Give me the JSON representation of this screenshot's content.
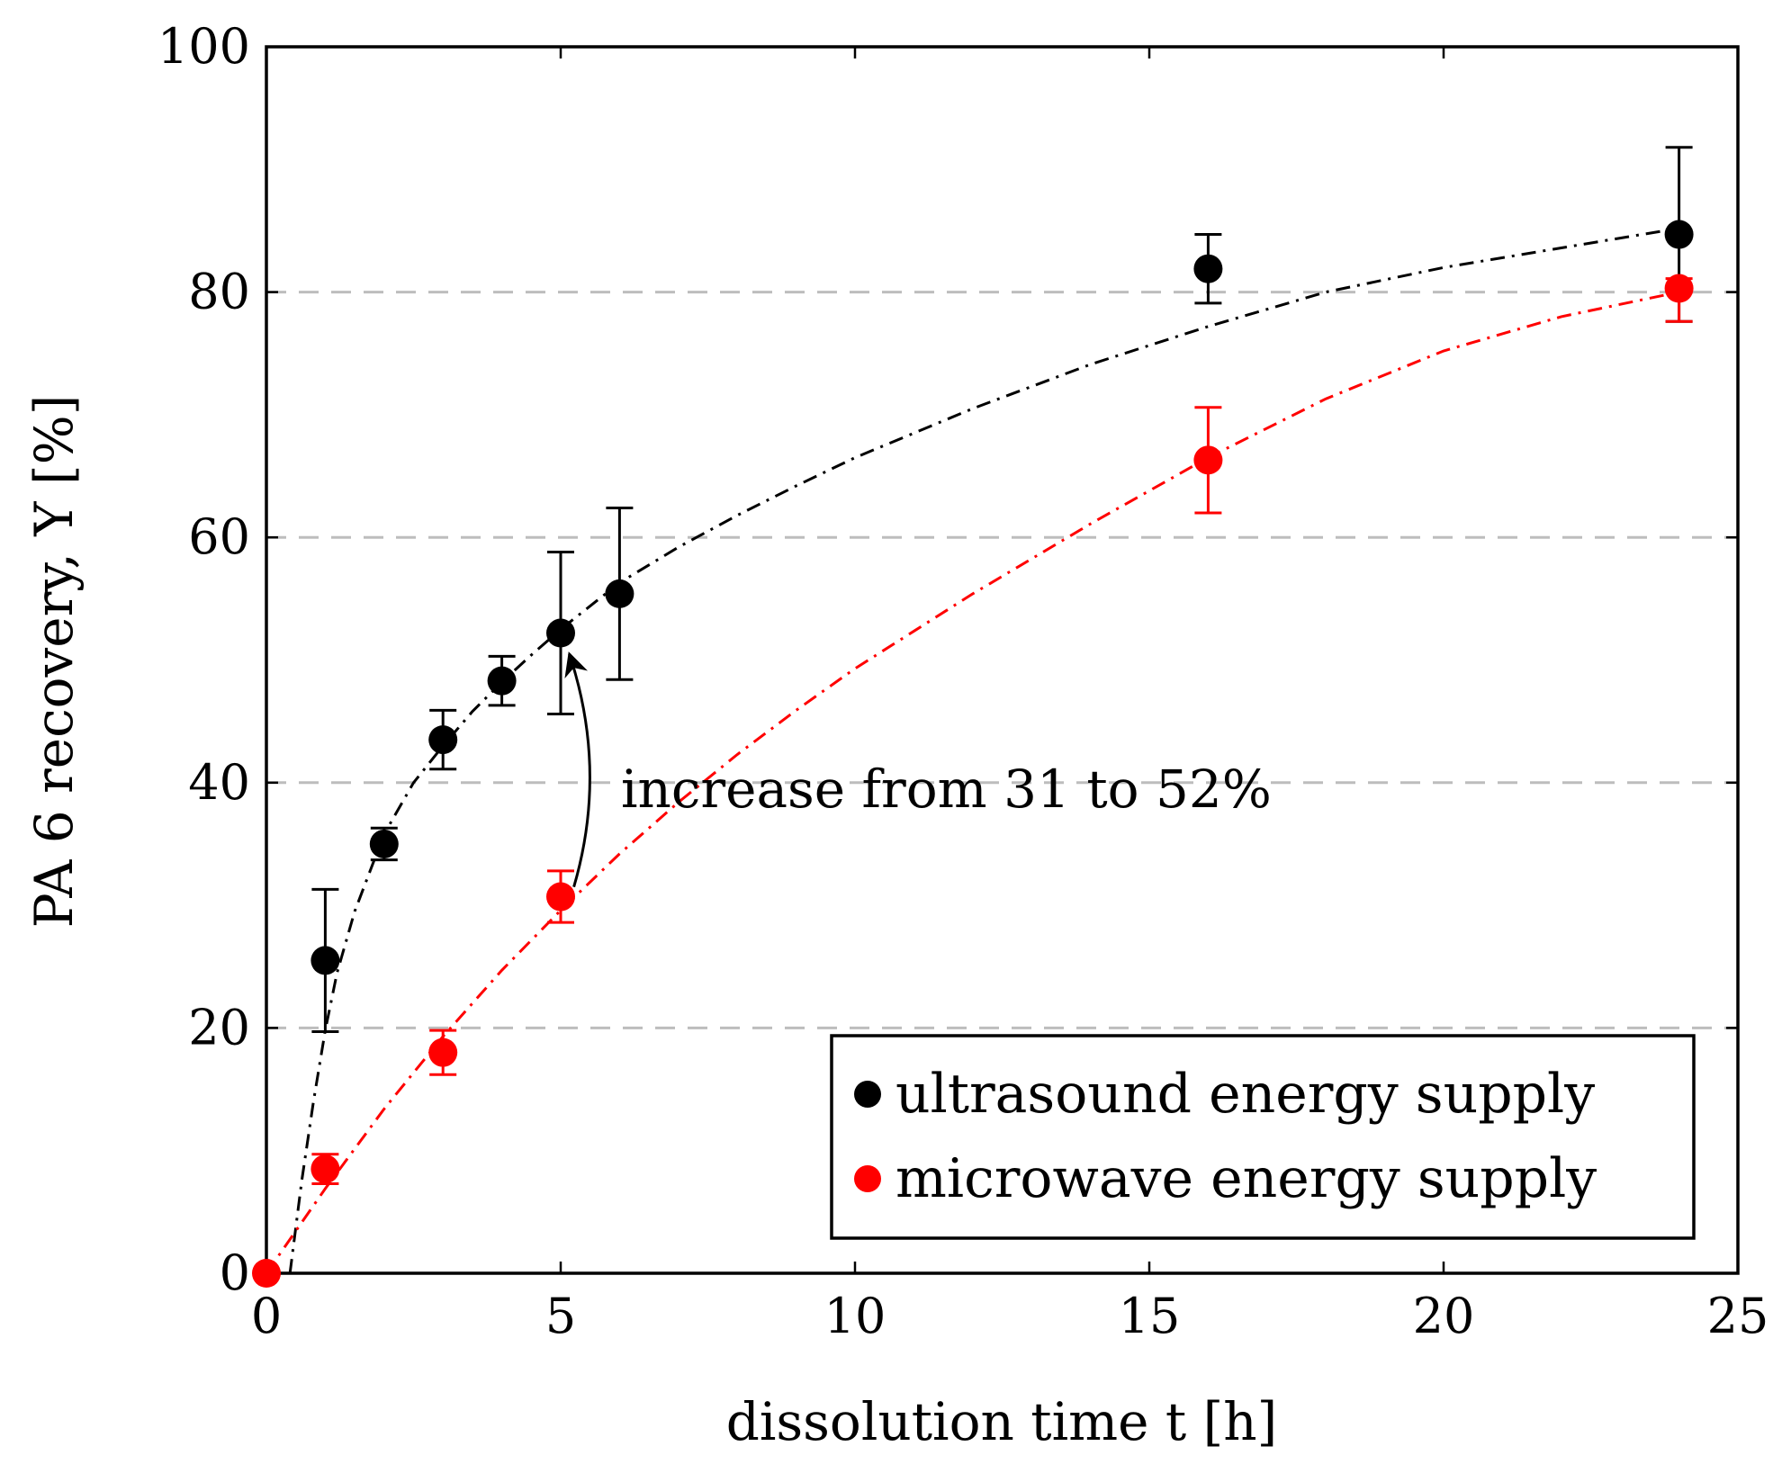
{
  "chart_data": {
    "type": "scatter",
    "title": "",
    "xlabel": "dissolution time t [h]",
    "ylabel": "PA 6 recovery, Y [%]",
    "xlim": [
      0,
      25
    ],
    "ylim": [
      0,
      100
    ],
    "xticks": [
      0,
      5,
      10,
      15,
      20,
      25
    ],
    "yticks": [
      0,
      20,
      40,
      60,
      80,
      100
    ],
    "grid": "horizontal dashed",
    "legend_position": "bottom-right",
    "series": [
      {
        "name": "ultrasound energy supply",
        "color": "#000000",
        "x": [
          1,
          2,
          3,
          4,
          5,
          6,
          16,
          24
        ],
        "y": [
          25.5,
          35,
          43.5,
          48.3,
          52.2,
          55.4,
          81.9,
          84.7
        ],
        "err_low": [
          5.8,
          1.3,
          2.4,
          2.0,
          6.6,
          7.0,
          2.8,
          7.1
        ],
        "err_high": [
          5.8,
          1.3,
          2.4,
          2.0,
          6.6,
          7.0,
          2.8,
          7.1
        ],
        "fit": {
          "x": [
            0.4,
            0.6,
            0.8,
            1.0,
            1.2,
            1.5,
            2.0,
            2.5,
            3.0,
            3.5,
            4.0,
            4.5,
            5.0,
            6.0,
            7.0,
            8.0,
            9.0,
            10.0,
            12.0,
            14.0,
            16.0,
            18.0,
            20.0,
            22.0,
            24.0
          ],
          "y": [
            0,
            7.5,
            14,
            19.8,
            24.5,
            29.5,
            35.8,
            40.0,
            43.0,
            45.8,
            48.2,
            50.4,
            52.5,
            56.3,
            59.2,
            61.8,
            64.2,
            66.5,
            70.5,
            74.1,
            77.2,
            80.0,
            82.0,
            83.6,
            85.2
          ]
        }
      },
      {
        "name": "microwave energy supply",
        "color": "#ff0000",
        "x": [
          0,
          1,
          3,
          5,
          16,
          24
        ],
        "y": [
          0,
          8.5,
          18,
          30.7,
          66.3,
          80.3
        ],
        "err_low": [
          0,
          1.2,
          1.8,
          2.1,
          4.3,
          2.7
        ],
        "err_high": [
          0,
          1.2,
          1.8,
          2.1,
          4.3,
          0.8
        ],
        "fit": {
          "x": [
            0,
            1,
            2,
            3,
            4,
            5,
            6,
            7,
            8,
            9,
            10,
            12,
            14,
            16,
            18,
            20,
            22,
            24
          ],
          "y": [
            0,
            6.9,
            13.4,
            19.3,
            24.7,
            29.6,
            34.2,
            38.4,
            42.3,
            45.9,
            49.3,
            55.4,
            61.1,
            66.5,
            71.3,
            75.2,
            78.0,
            80.0
          ]
        }
      }
    ],
    "annotations": [
      {
        "text": "increase from 31 to 52%",
        "arrow_from": [
          5.3,
          31.5
        ],
        "arrow_to": [
          5.3,
          50.5
        ]
      }
    ]
  }
}
